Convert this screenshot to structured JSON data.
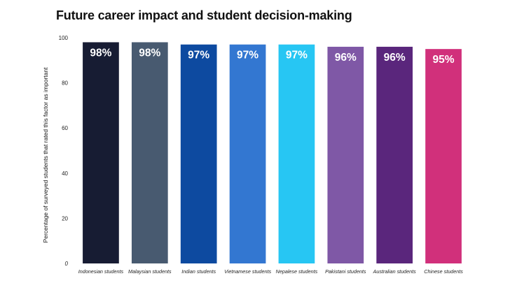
{
  "chart_data": {
    "type": "bar",
    "title": "Future career impact and student decision-making",
    "xlabel": "",
    "ylabel": "Percentage of surveyed students that rated this factor as important",
    "ylim": [
      0,
      100
    ],
    "yticks": [
      0,
      20,
      40,
      60,
      80,
      100
    ],
    "grid": false,
    "categories": [
      "Indonesian students",
      "Malaysian students",
      "Indian students",
      "Vietnamese students",
      "Nepalese students",
      "Pakistani students",
      "Australian students",
      "Chinese students"
    ],
    "values": [
      98,
      98,
      97,
      97,
      97,
      96,
      96,
      95
    ],
    "data_labels": [
      "98%",
      "98%",
      "97%",
      "97%",
      "97%",
      "96%",
      "96%",
      "95%"
    ],
    "colors": [
      "#171c33",
      "#485a70",
      "#0d4aa0",
      "#3377d1",
      "#27c6f3",
      "#7f58a6",
      "#5a267c",
      "#d1307b"
    ]
  }
}
